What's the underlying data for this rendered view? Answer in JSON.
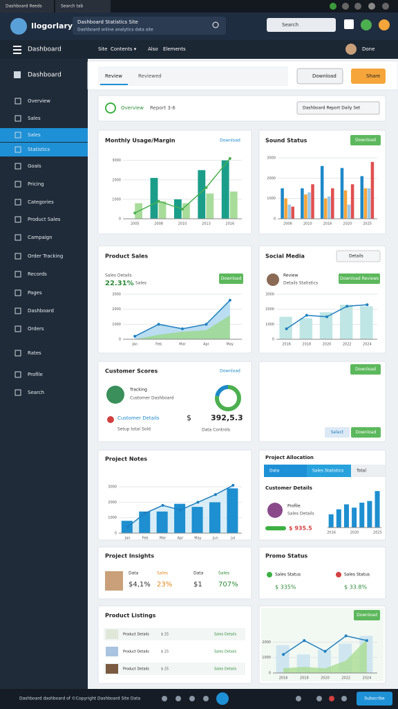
{
  "browser": {
    "tabs": [
      "Dashboard Reeds",
      "Search tab"
    ]
  },
  "header": {
    "brand": "Ilogorlary",
    "search_title": "Dashboard Statistics Site",
    "search_sub": "Dashboard online analytics data site",
    "search_placeholder": "Search"
  },
  "nav": {
    "title": "Dashboard",
    "items": [
      "Site",
      "Contents ▾",
      "Also",
      "Elements"
    ],
    "user": "Done"
  },
  "sidebar": {
    "heading": "Dashboard",
    "items": [
      "Overview",
      "Sales",
      "Sales",
      "Statistics",
      "Goals",
      "Pricing",
      "Categories",
      "Product Sales",
      "Campaign",
      "Order Tracking",
      "Records",
      "Pages",
      "Dashboard",
      "Orders",
      "Rates",
      "Profile",
      "Search"
    ],
    "active": [
      2,
      3
    ]
  },
  "toolbar": {
    "tabs": [
      "Review",
      "Reviewed"
    ],
    "buttons": [
      "Download",
      "Share"
    ]
  },
  "filter": {
    "label": "Overview",
    "report": "Report 3-6",
    "select": "Dashboard Report Daily Set"
  },
  "usage": {
    "title": "Monthly Usage/Margin",
    "link": "Download",
    "chart": {
      "categories": [
        "2005",
        "2008",
        "2010",
        "2013",
        "2016"
      ],
      "ylim": [
        0,
        3200
      ],
      "yticks": [
        0,
        1000,
        2000,
        3000
      ],
      "series": [
        {
          "type": "bar",
          "color": "#1a9e8a",
          "values": [
            0,
            2100,
            1000,
            2500,
            3000
          ]
        },
        {
          "type": "bar",
          "color": "#a8dc9a",
          "values": [
            800,
            900,
            800,
            1300,
            1400
          ]
        },
        {
          "type": "line",
          "color": "#4caf50",
          "values": [
            300,
            900,
            500,
            1600,
            3100
          ]
        }
      ]
    }
  },
  "sound": {
    "title": "Sound Status",
    "button": "Download",
    "chart": {
      "categories": [
        "2006",
        "2010",
        "2016",
        "2020",
        "2025"
      ],
      "ylim": [
        0,
        3000
      ],
      "yticks": [
        0,
        1000,
        2000,
        3000
      ],
      "series": [
        {
          "type": "bar",
          "color": "#1e88c8",
          "values": [
            1500,
            1500,
            2600,
            2500,
            2100
          ]
        },
        {
          "type": "bar",
          "color": "#f5a53a",
          "values": [
            1000,
            1200,
            1000,
            1400,
            1500
          ]
        },
        {
          "type": "bar",
          "color": "#9cc8e8",
          "values": [
            700,
            1300,
            1100,
            700,
            1500
          ]
        },
        {
          "type": "bar",
          "color": "#e05050",
          "values": [
            600,
            1700,
            1500,
            1700,
            2800
          ]
        }
      ]
    }
  },
  "sales": {
    "title": "Product Sales",
    "sub": "Sales Details",
    "percent": "22.31%",
    "unit": "Sales",
    "button": "Download",
    "chart": {
      "categories": [
        "Jan",
        "Feb",
        "Mar",
        "Apr",
        "May"
      ],
      "ylim": [
        0,
        3000
      ],
      "yticks": [
        0,
        1000,
        2000,
        3000
      ],
      "series": [
        {
          "type": "area",
          "color": "#a9d4ee",
          "values": [
            200,
            1000,
            700,
            1000,
            2600
          ]
        },
        {
          "type": "area",
          "color": "#9bd88a",
          "values": [
            0,
            300,
            500,
            600,
            1600
          ]
        },
        {
          "type": "line",
          "color": "#1e7fc0",
          "values": [
            200,
            1000,
            700,
            1000,
            2600
          ]
        }
      ]
    }
  },
  "social": {
    "title": "Social Media",
    "badge": "Details",
    "name": "Review",
    "sub": "Details Statistics",
    "button": "Download Reviews",
    "chart": {
      "categories": [
        "2016",
        "2018",
        "2020",
        "2022",
        "2024"
      ],
      "ylim": [
        0,
        3000
      ],
      "yticks": [
        0,
        1000,
        2000,
        3000
      ],
      "series": [
        {
          "type": "bar",
          "color": "#bfe6e4",
          "values": [
            1500,
            1400,
            1800,
            2300,
            2200
          ]
        },
        {
          "type": "line",
          "color": "#1e7fc0",
          "values": [
            700,
            1600,
            1500,
            2200,
            2300
          ]
        }
      ]
    }
  },
  "customer": {
    "title": "Customer Scores",
    "link": "Download",
    "name": "Tracking",
    "sub": "Customer Dashboard",
    "detail": "Customer Details",
    "note": "Setup total Sold",
    "currency": "$",
    "amount": "392,5.3",
    "controls": "Data Controls",
    "donut": {
      "values": [
        78,
        22
      ],
      "colors": [
        "#4caf50",
        "#1e88c8"
      ]
    }
  },
  "actions": {
    "buttons": [
      "Download",
      "Select",
      "Download"
    ]
  },
  "notes": {
    "title": "Project Notes",
    "chart": {
      "categories": [
        "Jan",
        "Feb",
        "Mar",
        "Apr",
        "May",
        "Jun",
        "Jul"
      ],
      "ylim": [
        0,
        3500
      ],
      "yticks": [
        0,
        1000,
        2000,
        3000
      ],
      "series": [
        {
          "type": "area",
          "color": "#cfe8f5",
          "values": [
            400,
            1300,
            1800,
            1500,
            2000,
            2500,
            3100
          ]
        },
        {
          "type": "bar",
          "color": "#1e8fd0",
          "values": [
            800,
            1400,
            1400,
            1900,
            1700,
            2000,
            2900
          ]
        },
        {
          "type": "line",
          "color": "#1e7fc0",
          "values": [
            400,
            1300,
            1800,
            1500,
            2000,
            2500,
            3100
          ]
        }
      ]
    }
  },
  "allocation": {
    "title": "Project Allocation",
    "tabs": [
      "Data",
      "Sales Statistics",
      "Total"
    ],
    "heading": "Customer Details",
    "name": "Profile",
    "sub": "Sales Details",
    "amount": "$ 935.5",
    "chart": {
      "categories": [
        "2016",
        null,
        null,
        "2020",
        null,
        null,
        "2025"
      ],
      "ylim": [
        0,
        2500
      ],
      "series": [
        {
          "type": "bar",
          "color": "#1e8fd0",
          "values": [
            800,
            1100,
            1400,
            1200,
            1500,
            1600,
            2200
          ]
        }
      ]
    }
  },
  "insights": {
    "title": "Project Insights",
    "stats": [
      [
        "Data",
        "$4,1%"
      ],
      [
        "Sales",
        "23%"
      ],
      [
        "Data",
        "$1"
      ],
      [
        "Sales",
        "707%"
      ]
    ]
  },
  "promo": {
    "title": "Promo Status",
    "stats": [
      [
        "Sales Status",
        "$ 335%"
      ],
      [
        "Sales Status",
        "$ 33.8%"
      ]
    ]
  },
  "listings": {
    "title": "Product Listings",
    "rows": [
      [
        "Product Details",
        "$ 25",
        "Sales Details"
      ],
      [
        "Product Details",
        "$ 25",
        "Sales Details"
      ],
      [
        "Product Details",
        "$ 25",
        "Sales Details"
      ]
    ]
  },
  "trend": {
    "button": "Download",
    "chart": {
      "categories": [
        "2016",
        "2018",
        "2020",
        "2022",
        "2024"
      ],
      "ylim": [
        0,
        3000
      ],
      "yticks": [
        0,
        1000,
        2000
      ],
      "series": [
        {
          "type": "bar",
          "color": "#cfe6f0",
          "values": [
            1800,
            1200,
            1500,
            1900,
            2400
          ]
        },
        {
          "type": "area",
          "color": "#a9dc92",
          "values": [
            300,
            400,
            300,
            800,
            2200
          ]
        },
        {
          "type": "line",
          "color": "#1e7fc0",
          "values": [
            1200,
            2100,
            1400,
            2400,
            2100
          ]
        }
      ]
    }
  },
  "footer": {
    "text": "Dashboard dashboard of ©Copyright Dashboard Site Data",
    "button": "Subscribe"
  }
}
